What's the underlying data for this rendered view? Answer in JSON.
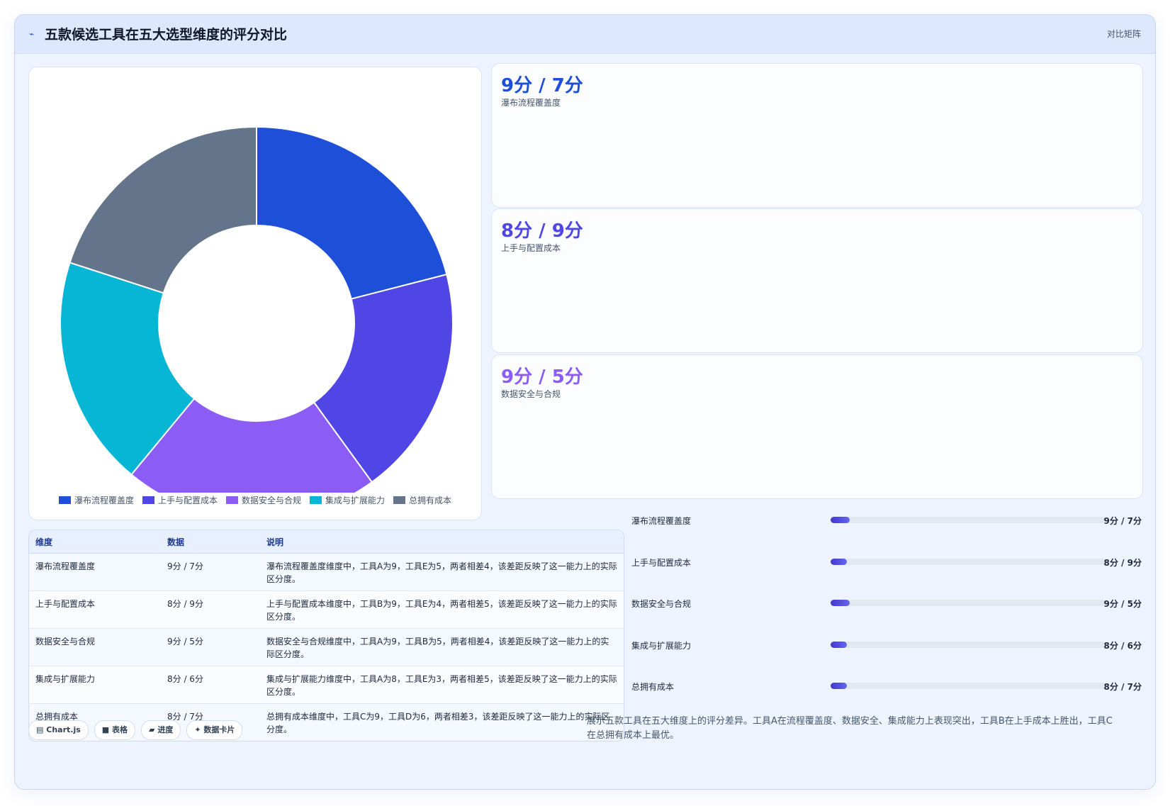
{
  "header": {
    "icon": "chart-line-icon",
    "title": "五款候选工具在五大选型维度的评分对比",
    "tag": "对比矩阵"
  },
  "chart_data": {
    "type": "pie",
    "donut": true,
    "categories": [
      "瀑布流程覆盖度",
      "上手与配置成本",
      "数据安全与合规",
      "集成与扩展能力",
      "总拥有成本"
    ],
    "values": [
      21,
      19,
      21,
      19,
      20
    ],
    "colors": [
      "#1d4fd8",
      "#4f46e5",
      "#8b5cf6",
      "#06b6d4",
      "#64748b"
    ],
    "legend": "bottom"
  },
  "cards": [
    {
      "value": "9分 / 7分",
      "label": "瀑布流程覆盖度",
      "color": "#1d4fd8"
    },
    {
      "value": "8分 / 9分",
      "label": "上手与配置成本",
      "color": "#4f46e5"
    },
    {
      "value": "9分 / 5分",
      "label": "数据安全与合规",
      "color": "#8b5cf6"
    }
  ],
  "table": {
    "headers": [
      "维度",
      "数据",
      "说明"
    ],
    "rows": [
      [
        "瀑布流程覆盖度",
        "9分 / 7分",
        "瀑布流程覆盖度维度中，工具A为9，工具E为5，两者相差4，该差距反映了这一能力上的实际区分度。"
      ],
      [
        "上手与配置成本",
        "8分 / 9分",
        "上手与配置成本维度中，工具B为9，工具E为4，两者相差5，该差距反映了这一能力上的实际区分度。"
      ],
      [
        "数据安全与合规",
        "9分 / 5分",
        "数据安全与合规维度中，工具A为9，工具B为5，两者相差4，该差距反映了这一能力上的实际区分度。"
      ],
      [
        "集成与扩展能力",
        "8分 / 6分",
        "集成与扩展能力维度中，工具A为8，工具E为3，两者相差5，该差距反映了这一能力上的实际区分度。"
      ],
      [
        "总拥有成本",
        "8分 / 7分",
        "总拥有成本维度中，工具C为9，工具D为6，两者相差3，该差距反映了这一能力上的实际区分度。"
      ]
    ]
  },
  "progress": [
    {
      "label": "瀑布流程覆盖度",
      "value": "9分 / 7分",
      "fraction": 0.07
    },
    {
      "label": "上手与配置成本",
      "value": "8分 / 9分",
      "fraction": 0.06
    },
    {
      "label": "数据安全与合规",
      "value": "9分 / 5分",
      "fraction": 0.07
    },
    {
      "label": "集成与扩展能力",
      "value": "8分 / 6分",
      "fraction": 0.06
    },
    {
      "label": "总拥有成本",
      "value": "8分 / 7分",
      "fraction": 0.06
    }
  ],
  "chips": [
    {
      "icon": "chart-icon",
      "glyph": "▤",
      "label": "Chart.js"
    },
    {
      "icon": "table-icon",
      "glyph": "■",
      "label": "表格"
    },
    {
      "icon": "progress-icon",
      "glyph": "▰",
      "label": "进度"
    },
    {
      "icon": "card-icon",
      "glyph": "✦",
      "label": "数据卡片"
    }
  ],
  "summary": "展示五款工具在五大维度上的评分差异。工具A在流程覆盖度、数据安全、集成能力上表现突出，工具B在上手成本上胜出，工具C在总拥有成本上最优。"
}
